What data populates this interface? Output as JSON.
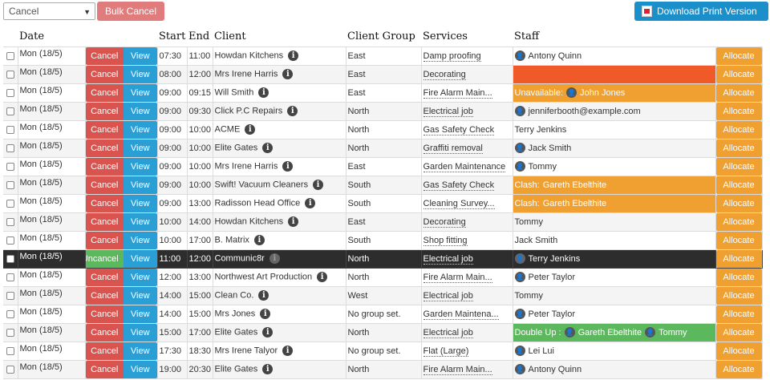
{
  "toolbar": {
    "select_value": "Cancel",
    "bulk_label": "Bulk Cancel",
    "download_label": "Download Print Version"
  },
  "columns": {
    "date": "Date",
    "start": "Start",
    "end": "End",
    "client": "Client",
    "group": "Client Group",
    "services": "Services",
    "staff": "Staff"
  },
  "labels": {
    "cancel": "Cancel",
    "uncancel": "Uncancel",
    "view": "View",
    "allocate": "Allocate",
    "unavailable": "Unavailable:",
    "clash": "Clash:",
    "double_up": "Double Up :"
  },
  "rows": [
    {
      "date": "Mon (18/5)",
      "start": "07:30",
      "end": "11:00",
      "client": "Howdan Kitchens",
      "group": "East",
      "service": "Damp proofing",
      "staff_type": "plain",
      "staff": "Antony Quinn",
      "icon": true
    },
    {
      "date": "Mon (18/5)",
      "start": "08:00",
      "end": "12:00",
      "client": "Mrs Irene Harris",
      "group": "East",
      "service": "Decorating",
      "staff_type": "red",
      "staff": ""
    },
    {
      "date": "Mon (18/5)",
      "start": "09:00",
      "end": "09:15",
      "client": "Will Smith",
      "group": "East",
      "service": "Fire Alarm Main...",
      "staff_type": "unavailable",
      "staff": "John Jones",
      "icon": true
    },
    {
      "date": "Mon (18/5)",
      "start": "09:00",
      "end": "09:30",
      "client": "Click P.C Repairs",
      "group": "North",
      "service": "Electrical job",
      "staff_type": "plain",
      "staff": "jenniferbooth@example.com",
      "icon": true
    },
    {
      "date": "Mon (18/5)",
      "start": "09:00",
      "end": "10:00",
      "client": "ACME",
      "group": "North",
      "service": "Gas Safety Check",
      "staff_type": "plain",
      "staff": "Terry Jenkins",
      "icon": false
    },
    {
      "date": "Mon (18/5)",
      "start": "09:00",
      "end": "10:00",
      "client": "Elite Gates",
      "group": "North",
      "service": "Graffiti removal",
      "staff_type": "plain",
      "staff": "Jack Smith",
      "icon": true
    },
    {
      "date": "Mon (18/5)",
      "start": "09:00",
      "end": "10:00",
      "client": "Mrs Irene Harris",
      "group": "East",
      "service": "Garden Maintenance",
      "staff_type": "plain",
      "staff": "Tommy",
      "icon": true
    },
    {
      "date": "Mon (18/5)",
      "start": "09:00",
      "end": "10:00",
      "client": "Swift! Vacuum Cleaners",
      "group": "South",
      "service": "Gas Safety Check",
      "staff_type": "clash",
      "staff": "Gareth Ebelthite"
    },
    {
      "date": "Mon (18/5)",
      "start": "09:00",
      "end": "13:00",
      "client": "Radisson Head Office",
      "group": "South",
      "service": "Cleaning Survey...",
      "staff_type": "clash",
      "staff": "Gareth Ebelthite"
    },
    {
      "date": "Mon (18/5)",
      "start": "10:00",
      "end": "14:00",
      "client": "Howdan Kitchens",
      "group": "East",
      "service": "Decorating",
      "staff_type": "plain",
      "staff": "Tommy",
      "icon": false
    },
    {
      "date": "Mon (18/5)",
      "start": "10:00",
      "end": "17:00",
      "client": "B. Matrix",
      "group": "South",
      "service": "Shop fitting",
      "staff_type": "plain",
      "staff": "Jack Smith",
      "icon": false
    },
    {
      "date": "Mon (18/5)",
      "start": "11:00",
      "end": "12:00",
      "client": "Communic8r",
      "group": "North",
      "service": "Electrical job",
      "staff_type": "plain",
      "staff": "Terry Jenkins",
      "icon": true,
      "dark": true
    },
    {
      "date": "Mon (18/5)",
      "start": "12:00",
      "end": "13:00",
      "client": "Northwest Art Production",
      "group": "North",
      "service": "Fire Alarm Main...",
      "staff_type": "plain",
      "staff": "Peter Taylor",
      "icon": true
    },
    {
      "date": "Mon (18/5)",
      "start": "14:00",
      "end": "15:00",
      "client": "Clean Co.",
      "group": "West",
      "service": "Electrical job",
      "staff_type": "plain",
      "staff": "Tommy",
      "icon": false
    },
    {
      "date": "Mon (18/5)",
      "start": "14:00",
      "end": "15:00",
      "client": "Mrs Jones",
      "group": "No group set.",
      "service": "Garden Maintena...",
      "staff_type": "plain",
      "staff": "Peter Taylor",
      "icon": true
    },
    {
      "date": "Mon (18/5)",
      "start": "15:00",
      "end": "17:00",
      "client": "Elite Gates",
      "group": "North",
      "service": "Electrical job",
      "staff_type": "double",
      "staff": "Gareth Ebelthite",
      "staff2": "Tommy"
    },
    {
      "date": "Mon (18/5)",
      "start": "17:30",
      "end": "18:30",
      "client": "Mrs Irene Talyor",
      "group": "No group set.",
      "service": "Flat (Large)",
      "staff_type": "plain",
      "staff": "Lei Lui",
      "icon": true
    },
    {
      "date": "Mon (18/5)",
      "start": "19:00",
      "end": "20:30",
      "client": "Elite Gates",
      "group": "North",
      "service": "Fire Alarm Main...",
      "staff_type": "plain",
      "staff": "Antony Quinn",
      "icon": true
    }
  ]
}
